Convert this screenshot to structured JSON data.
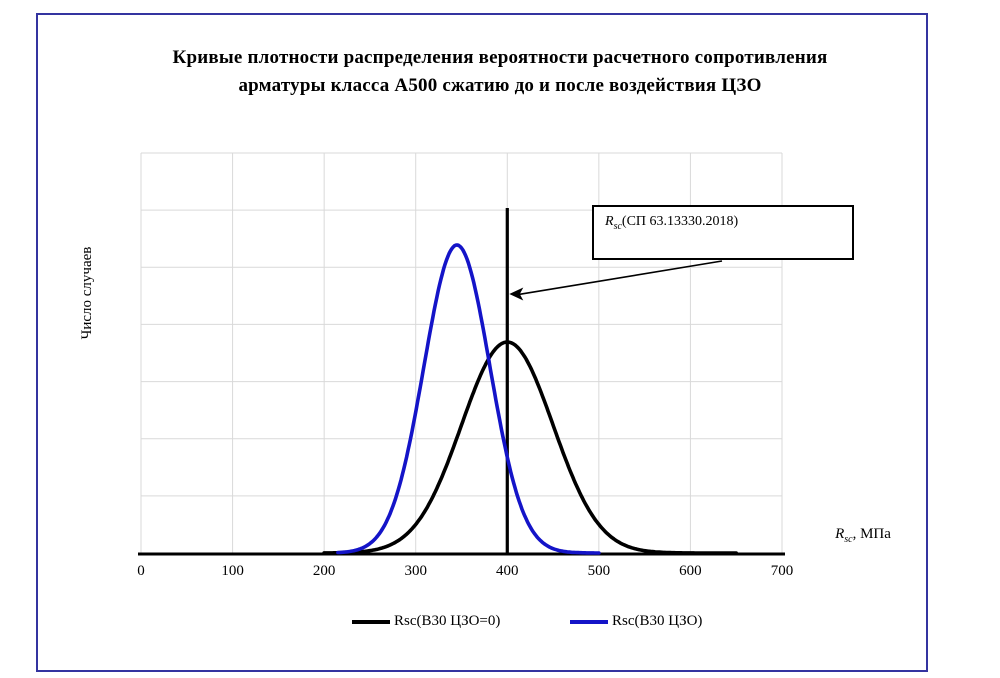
{
  "frame": {
    "border_color": "#3434a0"
  },
  "title": {
    "full": "Кривые плотности распределения вероятности расчетного сопротивления арматуры класса А500 сжатию до и после воздействия ЦЗО",
    "lines": [
      "Кривые плотности распределения вероятности расчетного сопротивления",
      "арматуры класса А500 сжатию до и после воздействия ЦЗО"
    ]
  },
  "chart_data": {
    "type": "line",
    "title": "Кривые плотности распределения вероятности расчетного сопротивления арматуры класса А500 сжатию до и после воздействия ЦЗО",
    "ylabel": "Число случаев",
    "xlabel": {
      "symbol": "R",
      "subscript": "sc",
      "suffix": ", МПа"
    },
    "x_range": [
      0,
      700
    ],
    "x_ticks": [
      0,
      100,
      200,
      300,
      400,
      500,
      600,
      700
    ],
    "y_ticks_shown": false,
    "grid": {
      "on": true,
      "color": "#d9d9d9",
      "x_interval": 100,
      "y_divisions": 7
    },
    "axis_color": "#000000",
    "series": [
      {
        "name": "Rsc(В30 ЦЗО=0)",
        "color": "#000000",
        "shape": "gaussian",
        "mean": 400,
        "sigma": 50,
        "peak_relative": 0.685,
        "x_plot_range": [
          200,
          650
        ]
      },
      {
        "name": "Rsc(В30 ЦЗО)",
        "color": "#1414c8",
        "shape": "gaussian",
        "mean": 345,
        "sigma": 36,
        "peak_relative": 1.0,
        "x_plot_range": [
          215,
          500
        ]
      }
    ],
    "marker_line": {
      "x": 400,
      "color": "#000000"
    },
    "annotation": {
      "symbol": "R",
      "subscript": "sc",
      "text": "(СП 63.13330.2018)",
      "points_to_x": 400
    }
  },
  "legend": {
    "items_from_series": true
  }
}
